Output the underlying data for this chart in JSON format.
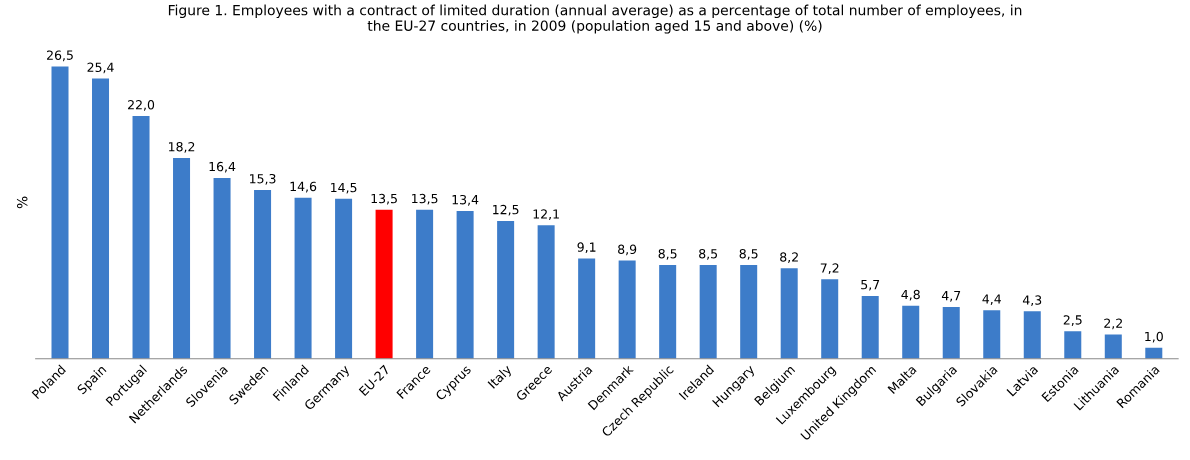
{
  "chart_data": {
    "type": "bar",
    "title": "Figure 1. Employees with a contract of limited duration (annual average) as a percentage of total number of employees, in\nthe EU-27 countries, in 2009 (population aged 15 and above) (%)",
    "ylabel": "%",
    "categories": [
      "Poland",
      "Spain",
      "Portugal",
      "Netherlands",
      "Slovenia",
      "Sweden",
      "Finland",
      "Germany",
      "EU-27",
      "France",
      "Cyprus",
      "Italy",
      "Greece",
      "Austria",
      "Denmark",
      "Czech Republic",
      "Ireland",
      "Hungary",
      "Belgium",
      "Luxembourg",
      "United Kingdom",
      "Malta",
      "Bulgaria",
      "Slovakia",
      "Latvia",
      "Estonia",
      "Lithuania",
      "Romania"
    ],
    "values": [
      26.5,
      25.4,
      22.0,
      18.2,
      16.4,
      15.3,
      14.6,
      14.5,
      13.5,
      13.5,
      13.4,
      12.5,
      12.1,
      9.1,
      8.9,
      8.5,
      8.5,
      8.5,
      8.2,
      7.2,
      5.7,
      4.8,
      4.7,
      4.4,
      4.3,
      2.5,
      2.2,
      1.0
    ],
    "value_labels": [
      "26,5",
      "25,4",
      "22,0",
      "18,2",
      "16,4",
      "15,3",
      "14,6",
      "14,5",
      "13,5",
      "13,5",
      "13,4",
      "12,5",
      "12,1",
      "9,1",
      "8,9",
      "8,5",
      "8,5",
      "8,5",
      "8,2",
      "7,2",
      "5,7",
      "4,8",
      "4,7",
      "4,4",
      "4,3",
      "2,5",
      "2,2",
      "1,0"
    ],
    "colors": [
      "#3d7cc9",
      "#3d7cc9",
      "#3d7cc9",
      "#3d7cc9",
      "#3d7cc9",
      "#3d7cc9",
      "#3d7cc9",
      "#3d7cc9",
      "#ff0000",
      "#3d7cc9",
      "#3d7cc9",
      "#3d7cc9",
      "#3d7cc9",
      "#3d7cc9",
      "#3d7cc9",
      "#3d7cc9",
      "#3d7cc9",
      "#3d7cc9",
      "#3d7cc9",
      "#3d7cc9",
      "#3d7cc9",
      "#3d7cc9",
      "#3d7cc9",
      "#3d7cc9",
      "#3d7cc9",
      "#3d7cc9",
      "#3d7cc9",
      "#3d7cc9"
    ],
    "grid": false,
    "legend": false
  }
}
